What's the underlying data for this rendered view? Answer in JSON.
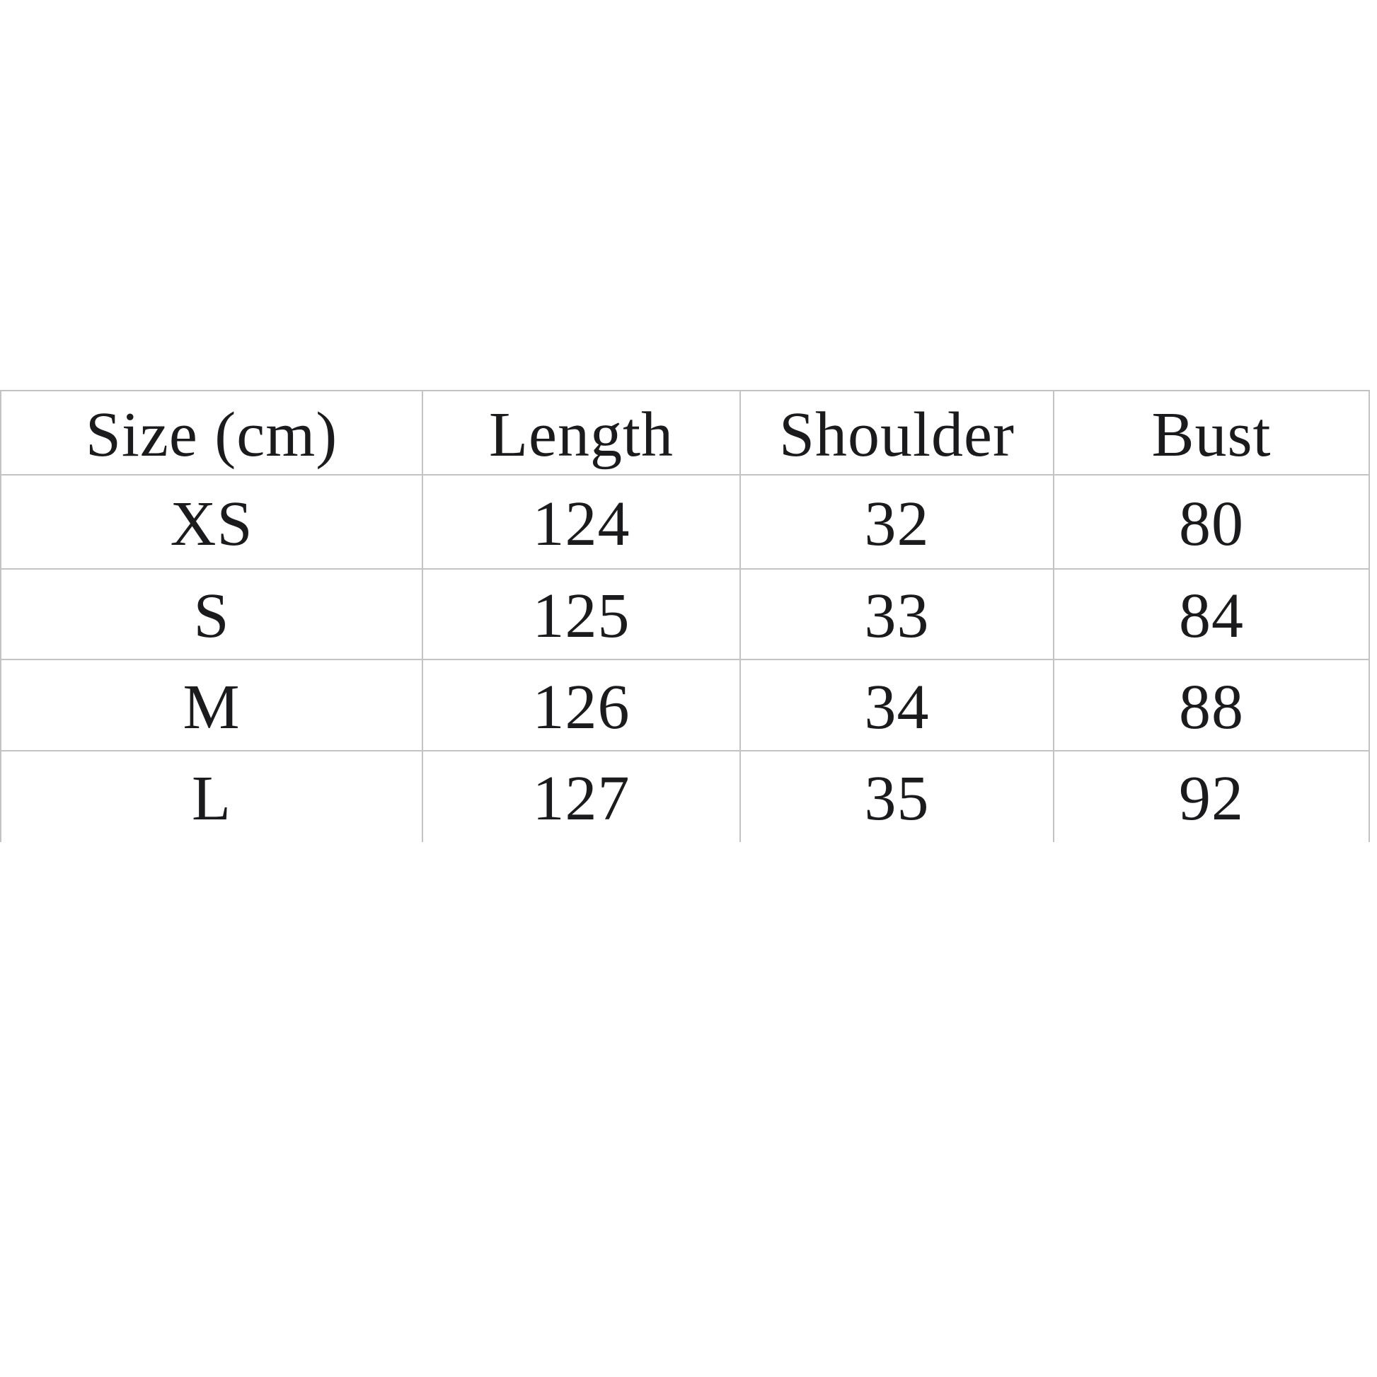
{
  "page": {
    "kind": "size-chart-image",
    "background": "#ffffff"
  },
  "colors": {
    "background": "#ffffff",
    "grid_line": "#c3c3c3",
    "text": "#1b1b1d"
  },
  "chart_data": {
    "type": "table",
    "title": "Size (cm)",
    "columns": [
      "Size (cm)",
      "Length",
      "Shoulder",
      "Bust"
    ],
    "rows": [
      {
        "size": "XS",
        "length": "124",
        "shoulder": "32",
        "bust": "80"
      },
      {
        "size": "S",
        "length": "125",
        "shoulder": "33",
        "bust": "84"
      },
      {
        "size": "M",
        "length": "126",
        "shoulder": "34",
        "bust": "88"
      },
      {
        "size": "L",
        "length": "127",
        "shoulder": "35",
        "bust": "92"
      }
    ]
  },
  "table": {
    "columns": [
      "Size (cm)",
      "Length",
      "Shoulder",
      "Bust"
    ],
    "rows": [
      {
        "size": "XS",
        "length": "124",
        "shoulder": "32",
        "bust": "80"
      },
      {
        "size": "S",
        "length": "125",
        "shoulder": "33",
        "bust": "84"
      },
      {
        "size": "M",
        "length": "126",
        "shoulder": "34",
        "bust": "88"
      },
      {
        "size": "L",
        "length": "127",
        "shoulder": "35",
        "bust": "92"
      }
    ]
  }
}
